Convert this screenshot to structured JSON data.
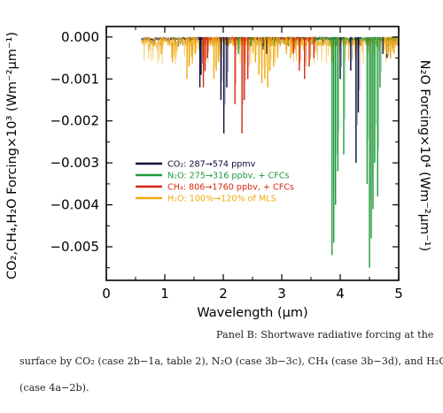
{
  "chart_data": {
    "type": "line",
    "xlabel": "Wavelength (μm)",
    "ylabel_left": "CO₂,CH₄,H₂O Forcing×10³ (Wm⁻²μm⁻¹)",
    "ylabel_right": "N₂O Forcing×10⁴ (Wm⁻²μm⁻¹)",
    "xlim": [
      0,
      5
    ],
    "ylim": [
      -0.0058,
      0.00025
    ],
    "x_ticks": [
      "0",
      "1",
      "2",
      "3",
      "4",
      "5"
    ],
    "y_ticks": [
      "0.000",
      "−0.001",
      "−0.002",
      "−0.003",
      "−0.004",
      "−0.005"
    ],
    "y_tick_values": [
      0,
      -0.001,
      -0.002,
      -0.003,
      -0.004,
      -0.005
    ],
    "grid": false,
    "legend_position": "left-center",
    "series": [
      {
        "name": "CO₂: 287→574 ppmv",
        "color": "#0a0a3a",
        "features": [
          [
            1.43,
            -0.0001
          ],
          [
            1.6,
            -0.0012
          ],
          [
            1.62,
            -0.0009
          ],
          [
            1.96,
            -0.0015
          ],
          [
            2.01,
            -0.0023
          ],
          [
            2.06,
            -0.0012
          ],
          [
            2.68,
            -0.0003
          ],
          [
            2.74,
            -0.0004
          ],
          [
            4.0,
            -0.001
          ],
          [
            4.18,
            -0.0008
          ],
          [
            4.27,
            -0.003
          ],
          [
            4.31,
            -0.0018
          ],
          [
            4.73,
            -0.0004
          ],
          [
            4.8,
            -0.0005
          ]
        ]
      },
      {
        "name": "N₂O: 275→316 ppbv, + CFCs",
        "color": "#1f9a3c",
        "features": [
          [
            2.26,
            -0.0004
          ],
          [
            2.47,
            -0.0002
          ],
          [
            2.87,
            -0.0002
          ],
          [
            3.58,
            -0.0001
          ],
          [
            3.86,
            -0.0052
          ],
          [
            3.89,
            -0.0049
          ],
          [
            3.92,
            -0.004
          ],
          [
            3.96,
            -0.0032
          ],
          [
            4.06,
            -0.0028
          ],
          [
            4.46,
            -0.0035
          ],
          [
            4.5,
            -0.0055
          ],
          [
            4.53,
            -0.0048
          ],
          [
            4.56,
            -0.0041
          ],
          [
            4.59,
            -0.003
          ],
          [
            4.64,
            -0.0038
          ],
          [
            4.68,
            -0.0012
          ],
          [
            4.86,
            -0.0002
          ],
          [
            4.93,
            -0.0001
          ]
        ]
      },
      {
        "name": "CH₄: 806→1760 ppbv, + CFCs",
        "color": "#d42810",
        "features": [
          [
            1.66,
            -0.0012
          ],
          [
            1.69,
            -0.0008
          ],
          [
            1.73,
            -0.0005
          ],
          [
            2.2,
            -0.0016
          ],
          [
            2.32,
            -0.0023
          ],
          [
            2.36,
            -0.0015
          ],
          [
            2.42,
            -0.001
          ],
          [
            3.2,
            -0.0004
          ],
          [
            3.3,
            -0.0008
          ],
          [
            3.39,
            -0.001
          ],
          [
            3.47,
            -0.0007
          ],
          [
            3.55,
            -0.0005
          ]
        ]
      },
      {
        "name": "H₂O: 100%→120% of MLS",
        "color": "#f0aa10",
        "features": [
          [
            0.72,
            -0.0001
          ],
          [
            0.82,
            -0.0002
          ],
          [
            0.94,
            -0.0004
          ],
          [
            1.13,
            -0.0006
          ],
          [
            1.38,
            -0.001
          ],
          [
            1.42,
            -0.0007
          ],
          [
            1.47,
            -0.0005
          ],
          [
            1.52,
            -0.0004
          ],
          [
            1.84,
            -0.001
          ],
          [
            1.88,
            -0.0008
          ],
          [
            1.92,
            -0.0006
          ],
          [
            2.55,
            -0.0006
          ],
          [
            2.61,
            -0.0009
          ],
          [
            2.66,
            -0.0011
          ],
          [
            2.71,
            -0.001
          ],
          [
            2.76,
            -0.0012
          ],
          [
            2.8,
            -0.0008
          ],
          [
            2.86,
            -0.0007
          ],
          [
            2.93,
            -0.0005
          ],
          [
            3.08,
            -0.0004
          ],
          [
            3.15,
            -0.0005
          ],
          [
            4.75,
            -0.0003
          ],
          [
            4.8,
            -0.0004
          ],
          [
            4.86,
            -0.0005
          ],
          [
            4.92,
            -0.0004
          ],
          [
            4.97,
            -0.0002
          ]
        ]
      }
    ]
  },
  "caption": {
    "line1": "Panel B: Shortwave radiative forcing at the",
    "line2": "surface by CO₂ (case 2b−1a, table 2), N₂O (case 3b−3c), CH₄ (case 3b−3d), and H₂O",
    "line3": "(case 4a−2b)."
  }
}
